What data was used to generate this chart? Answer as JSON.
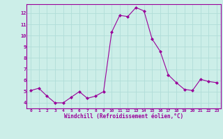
{
  "x": [
    0,
    1,
    2,
    3,
    4,
    5,
    6,
    7,
    8,
    9,
    10,
    11,
    12,
    13,
    14,
    15,
    16,
    17,
    18,
    19,
    20,
    21,
    22,
    23
  ],
  "y": [
    5.1,
    5.3,
    4.6,
    4.0,
    4.0,
    4.5,
    5.0,
    4.4,
    4.6,
    5.0,
    10.3,
    11.8,
    11.7,
    12.5,
    12.2,
    9.7,
    8.6,
    6.5,
    5.8,
    5.2,
    5.1,
    6.1,
    5.9,
    5.8
  ],
  "line_color": "#990099",
  "marker": "D",
  "marker_size": 2,
  "bg_color": "#cceee8",
  "grid_color": "#b0ddd8",
  "xlabel": "Windchill (Refroidissement éolien,°C)",
  "xlabel_color": "#990099",
  "tick_color": "#990099",
  "ylim": [
    3.5,
    12.8
  ],
  "xlim": [
    -0.5,
    23.5
  ],
  "yticks": [
    4,
    5,
    6,
    7,
    8,
    9,
    10,
    11,
    12
  ],
  "xticks": [
    0,
    1,
    2,
    3,
    4,
    5,
    6,
    7,
    8,
    9,
    10,
    11,
    12,
    13,
    14,
    15,
    16,
    17,
    18,
    19,
    20,
    21,
    22,
    23
  ],
  "spine_color": "#990099",
  "linewidth": 0.8
}
